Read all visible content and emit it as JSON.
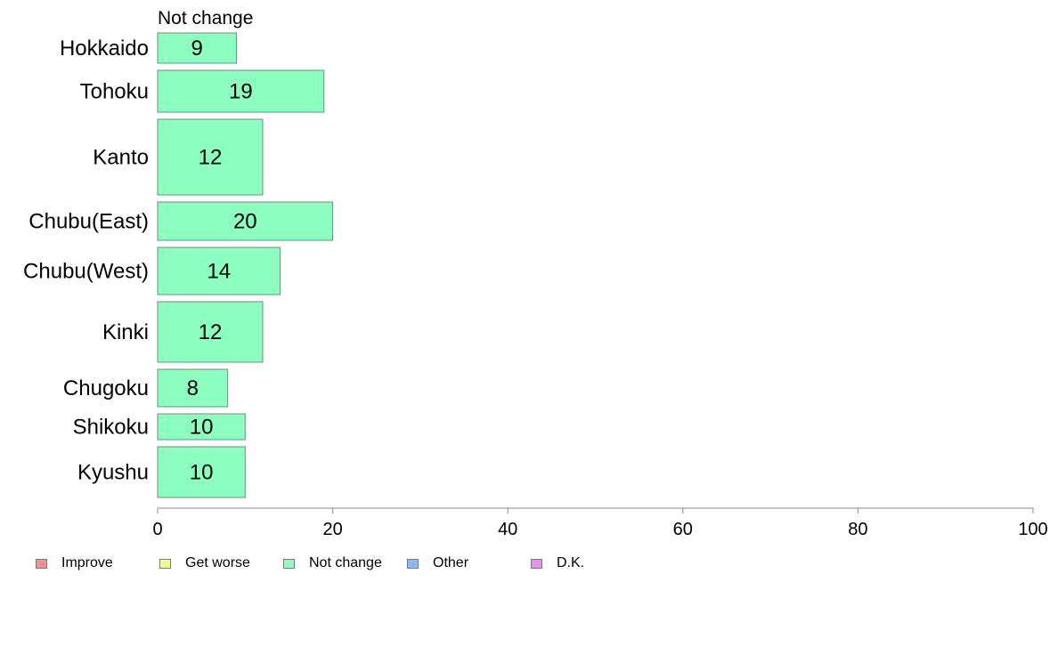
{
  "chart_data": {
    "type": "bar",
    "orientation": "horizontal",
    "series_title": "Not change",
    "categories": [
      "Hokkaido",
      "Tohoku",
      "Kanto",
      "Chubu(East)",
      "Chubu(West)",
      "Kinki",
      "Chugoku",
      "Shikoku",
      "Kyushu"
    ],
    "values": [
      9,
      19,
      12,
      20,
      14,
      12,
      8,
      10,
      10
    ],
    "bar_labels": [
      "9",
      "19",
      "12",
      "20",
      "14",
      "12",
      "8",
      "10",
      "10"
    ],
    "bar_color": "#8cffc0",
    "xlim": [
      0,
      100
    ],
    "xticks": [
      "0",
      "20",
      "40",
      "60",
      "80",
      "100"
    ],
    "legend": {
      "position": "bottom-left",
      "items": [
        {
          "label": "Improve",
          "color": "#ff8c8c"
        },
        {
          "label": "Get worse",
          "color": "#efff8c"
        },
        {
          "label": "Not change",
          "color": "#8cffc0"
        },
        {
          "label": "Other",
          "color": "#8cbaff"
        },
        {
          "label": "D.K.",
          "color": "#f08cf8"
        }
      ]
    }
  }
}
